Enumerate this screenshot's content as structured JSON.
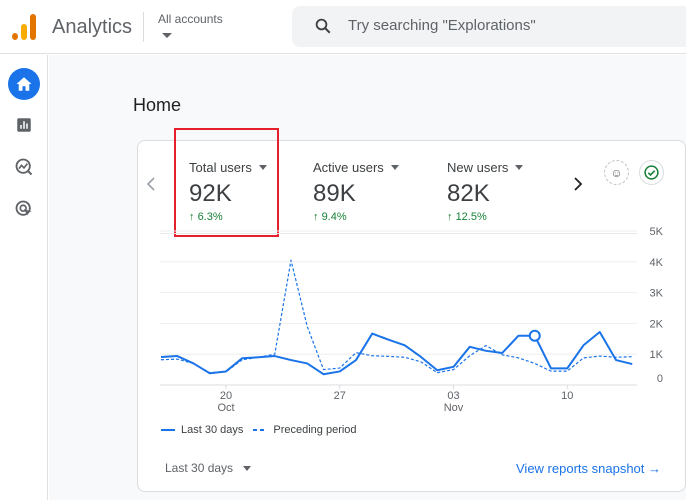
{
  "header": {
    "app_title": "Analytics",
    "account_selector": "All accounts",
    "search_placeholder": "Try searching \"Explorations\""
  },
  "sidebar": {
    "items": [
      {
        "icon": "home-icon",
        "active": true
      },
      {
        "icon": "reports-icon"
      },
      {
        "icon": "explore-icon"
      },
      {
        "icon": "advertising-icon"
      }
    ]
  },
  "page": {
    "title": "Home"
  },
  "metrics": [
    {
      "label": "Total users",
      "value": "92K",
      "change": "6.3%",
      "highlighted": true
    },
    {
      "label": "Active users",
      "value": "89K",
      "change": "9.4%"
    },
    {
      "label": "New users",
      "value": "82K",
      "change": "12.5%"
    }
  ],
  "chart_data": {
    "type": "line",
    "x_ticks": [
      {
        "day": "20",
        "month": "Oct",
        "index": 4
      },
      {
        "day": "27",
        "month": "",
        "index": 11
      },
      {
        "day": "03",
        "month": "Nov",
        "index": 18
      },
      {
        "day": "10",
        "month": "",
        "index": 25
      }
    ],
    "y_ticks": [
      "0",
      "1K",
      "2K",
      "3K",
      "4K",
      "5K"
    ],
    "ylim": [
      0,
      5000
    ],
    "grid": true,
    "legend_position": "bottom",
    "series": [
      {
        "name": "Last 30 days",
        "style": "solid",
        "color": "#1a73e8",
        "values": [
          910,
          940,
          700,
          380,
          440,
          870,
          900,
          940,
          810,
          700,
          350,
          440,
          810,
          1670,
          1470,
          1290,
          910,
          480,
          590,
          1240,
          1110,
          1040,
          1600,
          1600,
          540,
          540,
          1290,
          1720,
          810,
          680
        ]
      },
      {
        "name": "Preceding period",
        "style": "dashed",
        "color": "#1a73e8",
        "values": [
          820,
          840,
          700,
          400,
          430,
          820,
          900,
          1000,
          4050,
          1900,
          500,
          550,
          1050,
          950,
          930,
          900,
          750,
          400,
          500,
          950,
          1280,
          980,
          880,
          700,
          450,
          450,
          880,
          940,
          900,
          920
        ]
      }
    ],
    "highlighted_index": 23
  },
  "footer": {
    "date_range": "Last 30 days",
    "view_link": "View reports snapshot"
  }
}
